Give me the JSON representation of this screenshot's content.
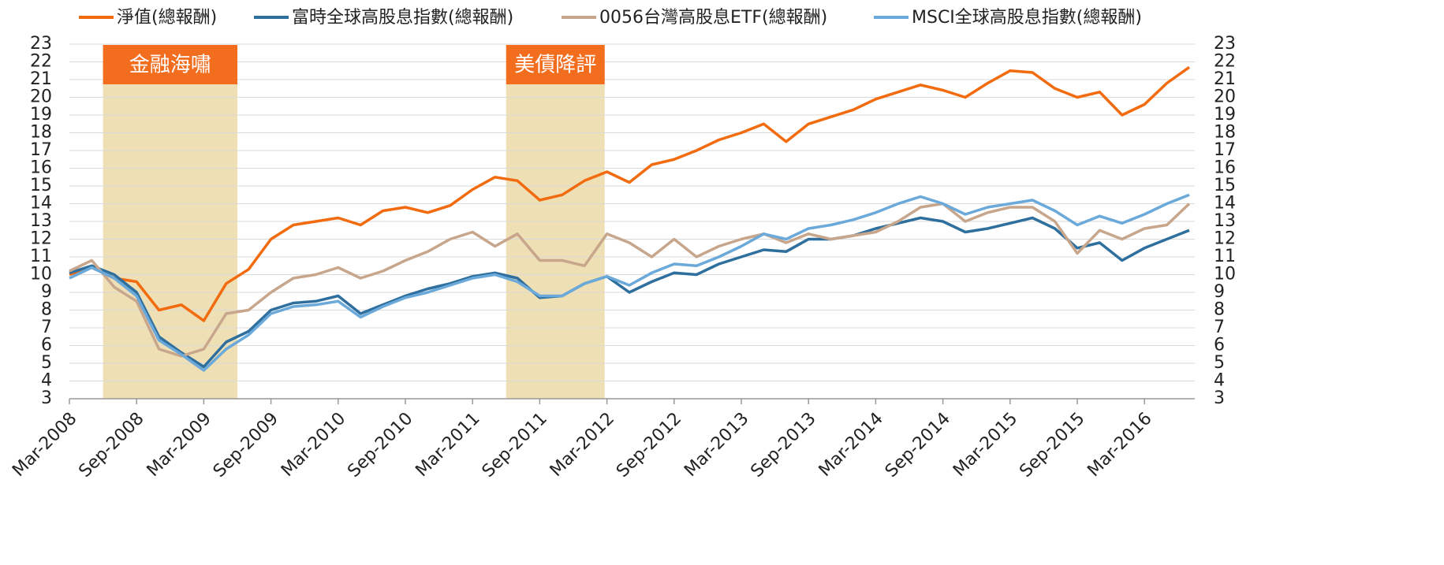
{
  "chart_data": {
    "type": "line",
    "x": [
      "Mar-2008",
      null,
      null,
      "Sep-2008",
      null,
      null,
      "Mar-2009",
      null,
      null,
      "Sep-2009",
      null,
      null,
      "Mar-2010",
      null,
      null,
      "Sep-2010",
      null,
      null,
      "Mar-2011",
      null,
      null,
      "Sep-2011",
      null,
      null,
      "Mar-2012",
      null,
      null,
      "Sep-2012",
      null,
      null,
      "Mar-2013",
      null,
      null,
      "Sep-2013",
      null,
      null,
      "Mar-2014",
      null,
      null,
      "Sep-2014",
      null,
      null,
      "Mar-2015",
      null,
      null,
      "Sep-2015",
      null,
      null,
      "Mar-2016",
      null,
      null
    ],
    "series": [
      {
        "name": "淨值(總報酬)",
        "color": "#f26b0f",
        "values": [
          10.0,
          10.4,
          9.8,
          9.6,
          8.0,
          8.3,
          7.4,
          9.5,
          10.3,
          12.0,
          12.8,
          13.0,
          13.2,
          12.8,
          13.6,
          13.8,
          13.5,
          13.9,
          14.8,
          15.5,
          15.3,
          14.2,
          14.5,
          15.3,
          15.8,
          15.2,
          16.2,
          16.5,
          17.0,
          17.6,
          18.0,
          18.5,
          17.5,
          18.5,
          18.9,
          19.3,
          19.9,
          20.3,
          20.7,
          20.4,
          20.0,
          20.8,
          21.5,
          21.4,
          20.5,
          20.0,
          20.3,
          19.0,
          19.6,
          20.8,
          21.7
        ]
      },
      {
        "name": "富時全球高股息指數(總報酬)",
        "color": "#2e6f9e",
        "values": [
          10.1,
          10.5,
          10.0,
          9.0,
          6.5,
          5.6,
          4.8,
          6.2,
          6.8,
          8.0,
          8.4,
          8.5,
          8.8,
          7.8,
          8.3,
          8.8,
          9.2,
          9.5,
          9.9,
          10.1,
          9.8,
          8.7,
          8.8,
          9.5,
          9.9,
          9.0,
          9.6,
          10.1,
          10.0,
          10.6,
          11.0,
          11.4,
          11.3,
          12.0,
          12.0,
          12.2,
          12.6,
          12.9,
          13.2,
          13.0,
          12.4,
          12.6,
          12.9,
          13.2,
          12.6,
          11.5,
          11.8,
          10.8,
          11.5,
          12.0,
          12.5
        ]
      },
      {
        "name": "0056台灣高股息ETF(總報酬)",
        "color": "#c7a68c",
        "values": [
          10.2,
          10.8,
          9.3,
          8.5,
          5.8,
          5.4,
          5.8,
          7.8,
          8.0,
          9.0,
          9.8,
          10.0,
          10.4,
          9.8,
          10.2,
          10.8,
          11.3,
          12.0,
          12.4,
          11.6,
          12.3,
          10.8,
          10.8,
          10.5,
          12.3,
          11.8,
          11.0,
          12.0,
          11.0,
          11.6,
          12.0,
          12.3,
          11.8,
          12.3,
          12.0,
          12.2,
          12.4,
          13.0,
          13.8,
          14.0,
          13.0,
          13.5,
          13.8,
          13.8,
          13.0,
          11.2,
          12.5,
          12.0,
          12.6,
          12.8,
          14.0
        ]
      },
      {
        "name": "MSCI全球高股息指數(總報酬)",
        "color": "#6aa9d9",
        "values": [
          9.8,
          10.4,
          9.8,
          8.8,
          6.3,
          5.5,
          4.6,
          5.8,
          6.6,
          7.8,
          8.2,
          8.3,
          8.5,
          7.6,
          8.2,
          8.7,
          9.0,
          9.4,
          9.8,
          10.0,
          9.6,
          8.8,
          8.8,
          9.5,
          9.9,
          9.4,
          10.1,
          10.6,
          10.5,
          11.0,
          11.6,
          12.3,
          12.0,
          12.6,
          12.8,
          13.1,
          13.5,
          14.0,
          14.4,
          14.0,
          13.4,
          13.8,
          14.0,
          14.2,
          13.6,
          12.8,
          13.3,
          12.9,
          13.4,
          14.0,
          14.5
        ]
      }
    ],
    "ylim": [
      3,
      23
    ],
    "yticks": [
      3,
      4,
      5,
      6,
      7,
      8,
      9,
      10,
      11,
      12,
      13,
      14,
      15,
      16,
      17,
      18,
      19,
      20,
      21,
      22,
      23
    ],
    "y2lim": [
      3,
      23
    ],
    "y2ticks": [
      3,
      4,
      5,
      6,
      7,
      8,
      9,
      10,
      11,
      12,
      13,
      14,
      15,
      16,
      17,
      18,
      19,
      20,
      21,
      22,
      23
    ],
    "grid": true,
    "legend": "top",
    "bands": [
      {
        "label": "金融海嘯",
        "from": 1.5,
        "to": 7.5,
        "color": "#eedfb4"
      },
      {
        "label": "美債降評",
        "from": 19.5,
        "to": 23.9,
        "color": "#eedfb4"
      }
    ]
  }
}
